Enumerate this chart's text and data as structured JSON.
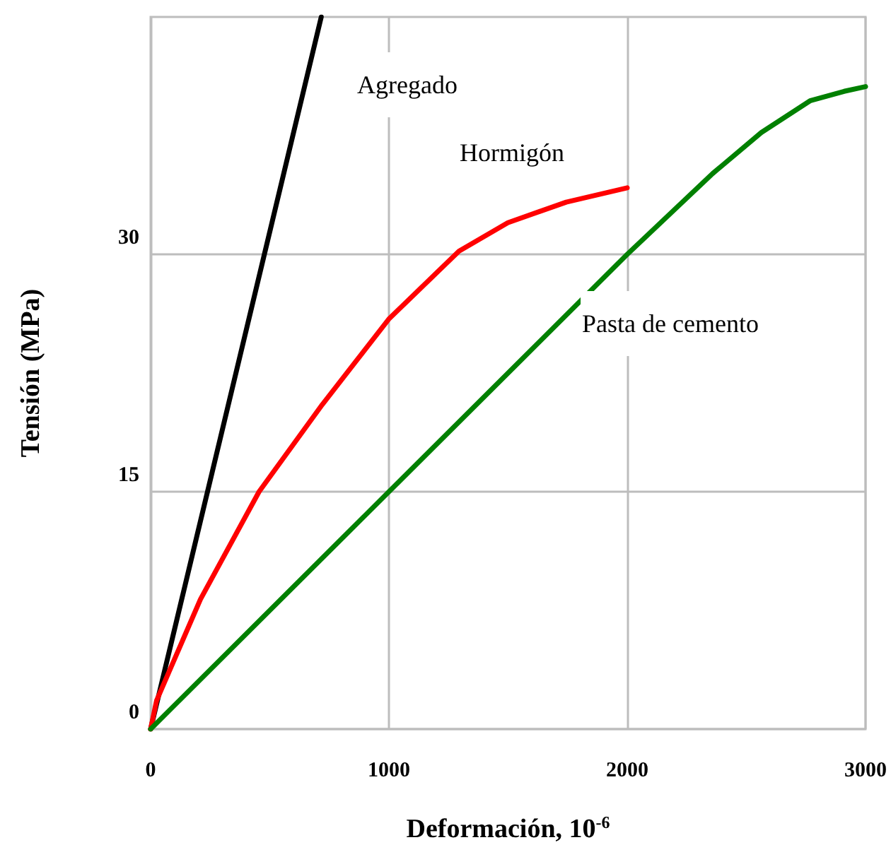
{
  "chart_data": {
    "type": "line",
    "xlabel": "Deformación, 10$^{-6}$",
    "ylabel": "Tensión (MPa)",
    "xlim": [
      0,
      3000
    ],
    "xticks": [
      0,
      1000,
      2000,
      3000
    ],
    "ylim": [
      0,
      45
    ],
    "yticks": [
      0,
      15,
      30
    ],
    "grid": true,
    "legend": false,
    "marker": "none",
    "line_style": "solid",
    "series": [
      {
        "name": "Agregado",
        "color": "#000000",
        "x": [
          0,
          716
        ],
        "values": [
          0,
          45
        ]
      },
      {
        "name": "Hormigón",
        "color": "#ff0000",
        "x": [
          0,
          25,
          209,
          455,
          720,
          999,
          1294,
          1499,
          1744,
          2000
        ],
        "values": [
          0,
          1.8,
          8.2,
          15.0,
          20.5,
          25.9,
          30.2,
          32.0,
          33.3,
          34.2
        ]
      },
      {
        "name": "Pasta de cemento",
        "color": "#008000",
        "x": [
          0,
          1000,
          2000,
          2358,
          2563,
          2767,
          2910,
          3000
        ],
        "values": [
          0,
          15,
          30,
          35.1,
          37.7,
          39.7,
          40.3,
          40.6
        ]
      }
    ]
  }
}
